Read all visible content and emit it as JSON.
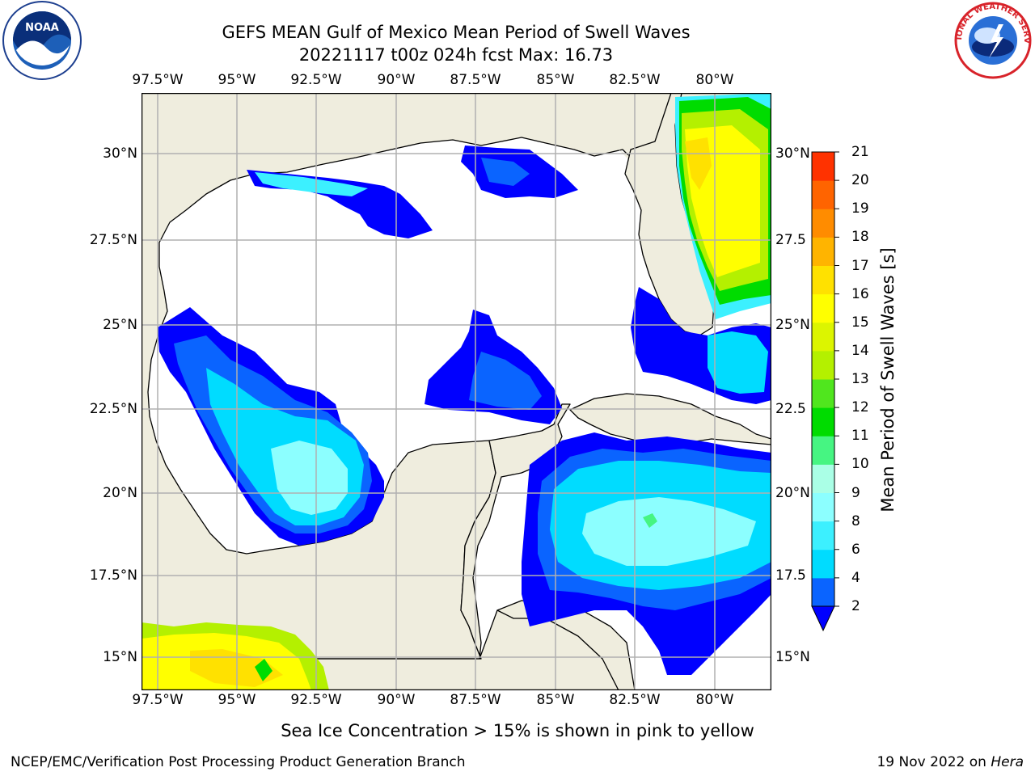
{
  "title": {
    "line1": "GEFS MEAN Gulf of Mexico Mean Period of Swell Waves",
    "line2": "20221117 t00z 024h fcst   Max: 16.73"
  },
  "map": {
    "lon_ticks": [
      "97.5°W",
      "95°W",
      "92.5°W",
      "90°W",
      "87.5°W",
      "85°W",
      "82.5°W",
      "80°W"
    ],
    "lat_ticks_left": [
      "30°N",
      "27.5°N",
      "25°N",
      "22.5°N",
      "20°N",
      "17.5°N",
      "15°N"
    ],
    "lat_ticks_right": [
      "30°N",
      "27.5",
      "25°N",
      "22.5",
      "20°N",
      "17.5",
      "15°N"
    ],
    "extent": {
      "lon_min": -98.0,
      "lon_max": -78.2,
      "lat_min": 14.0,
      "lat_max": 31.8
    },
    "land_color": "#efedde",
    "ocean_color": "#ffffff",
    "grid_color": "#b0b0b0"
  },
  "colorbar": {
    "title": "Mean Period of Swell Waves [s]",
    "levels": [
      "2",
      "4",
      "6",
      "8",
      "9",
      "10",
      "11",
      "12",
      "13",
      "14",
      "15",
      "16",
      "17",
      "18",
      "19",
      "20",
      "21"
    ],
    "colors": [
      "#0a64ff",
      "#00dcff",
      "#3cf0ff",
      "#8cffff",
      "#aaffe6",
      "#46f582",
      "#00dc00",
      "#50e61e",
      "#b4f000",
      "#dcf500",
      "#ffff00",
      "#ffe100",
      "#ffb400",
      "#ff8c00",
      "#ff6400",
      "#ff3200"
    ],
    "under_color": "#0000ff",
    "extend": "min"
  },
  "subtitle": "Sea Ice Concentration > 15% is shown in pink to yellow",
  "footer": {
    "left": "NCEP/EMC/Verification Post Processing Product Generation Branch",
    "right_date": "19 Nov 2022 on ",
    "right_host": "Hera"
  },
  "logos": {
    "noaa_text": "NOAA",
    "nws_text": "NATIONAL WEATHER SERVICE"
  }
}
